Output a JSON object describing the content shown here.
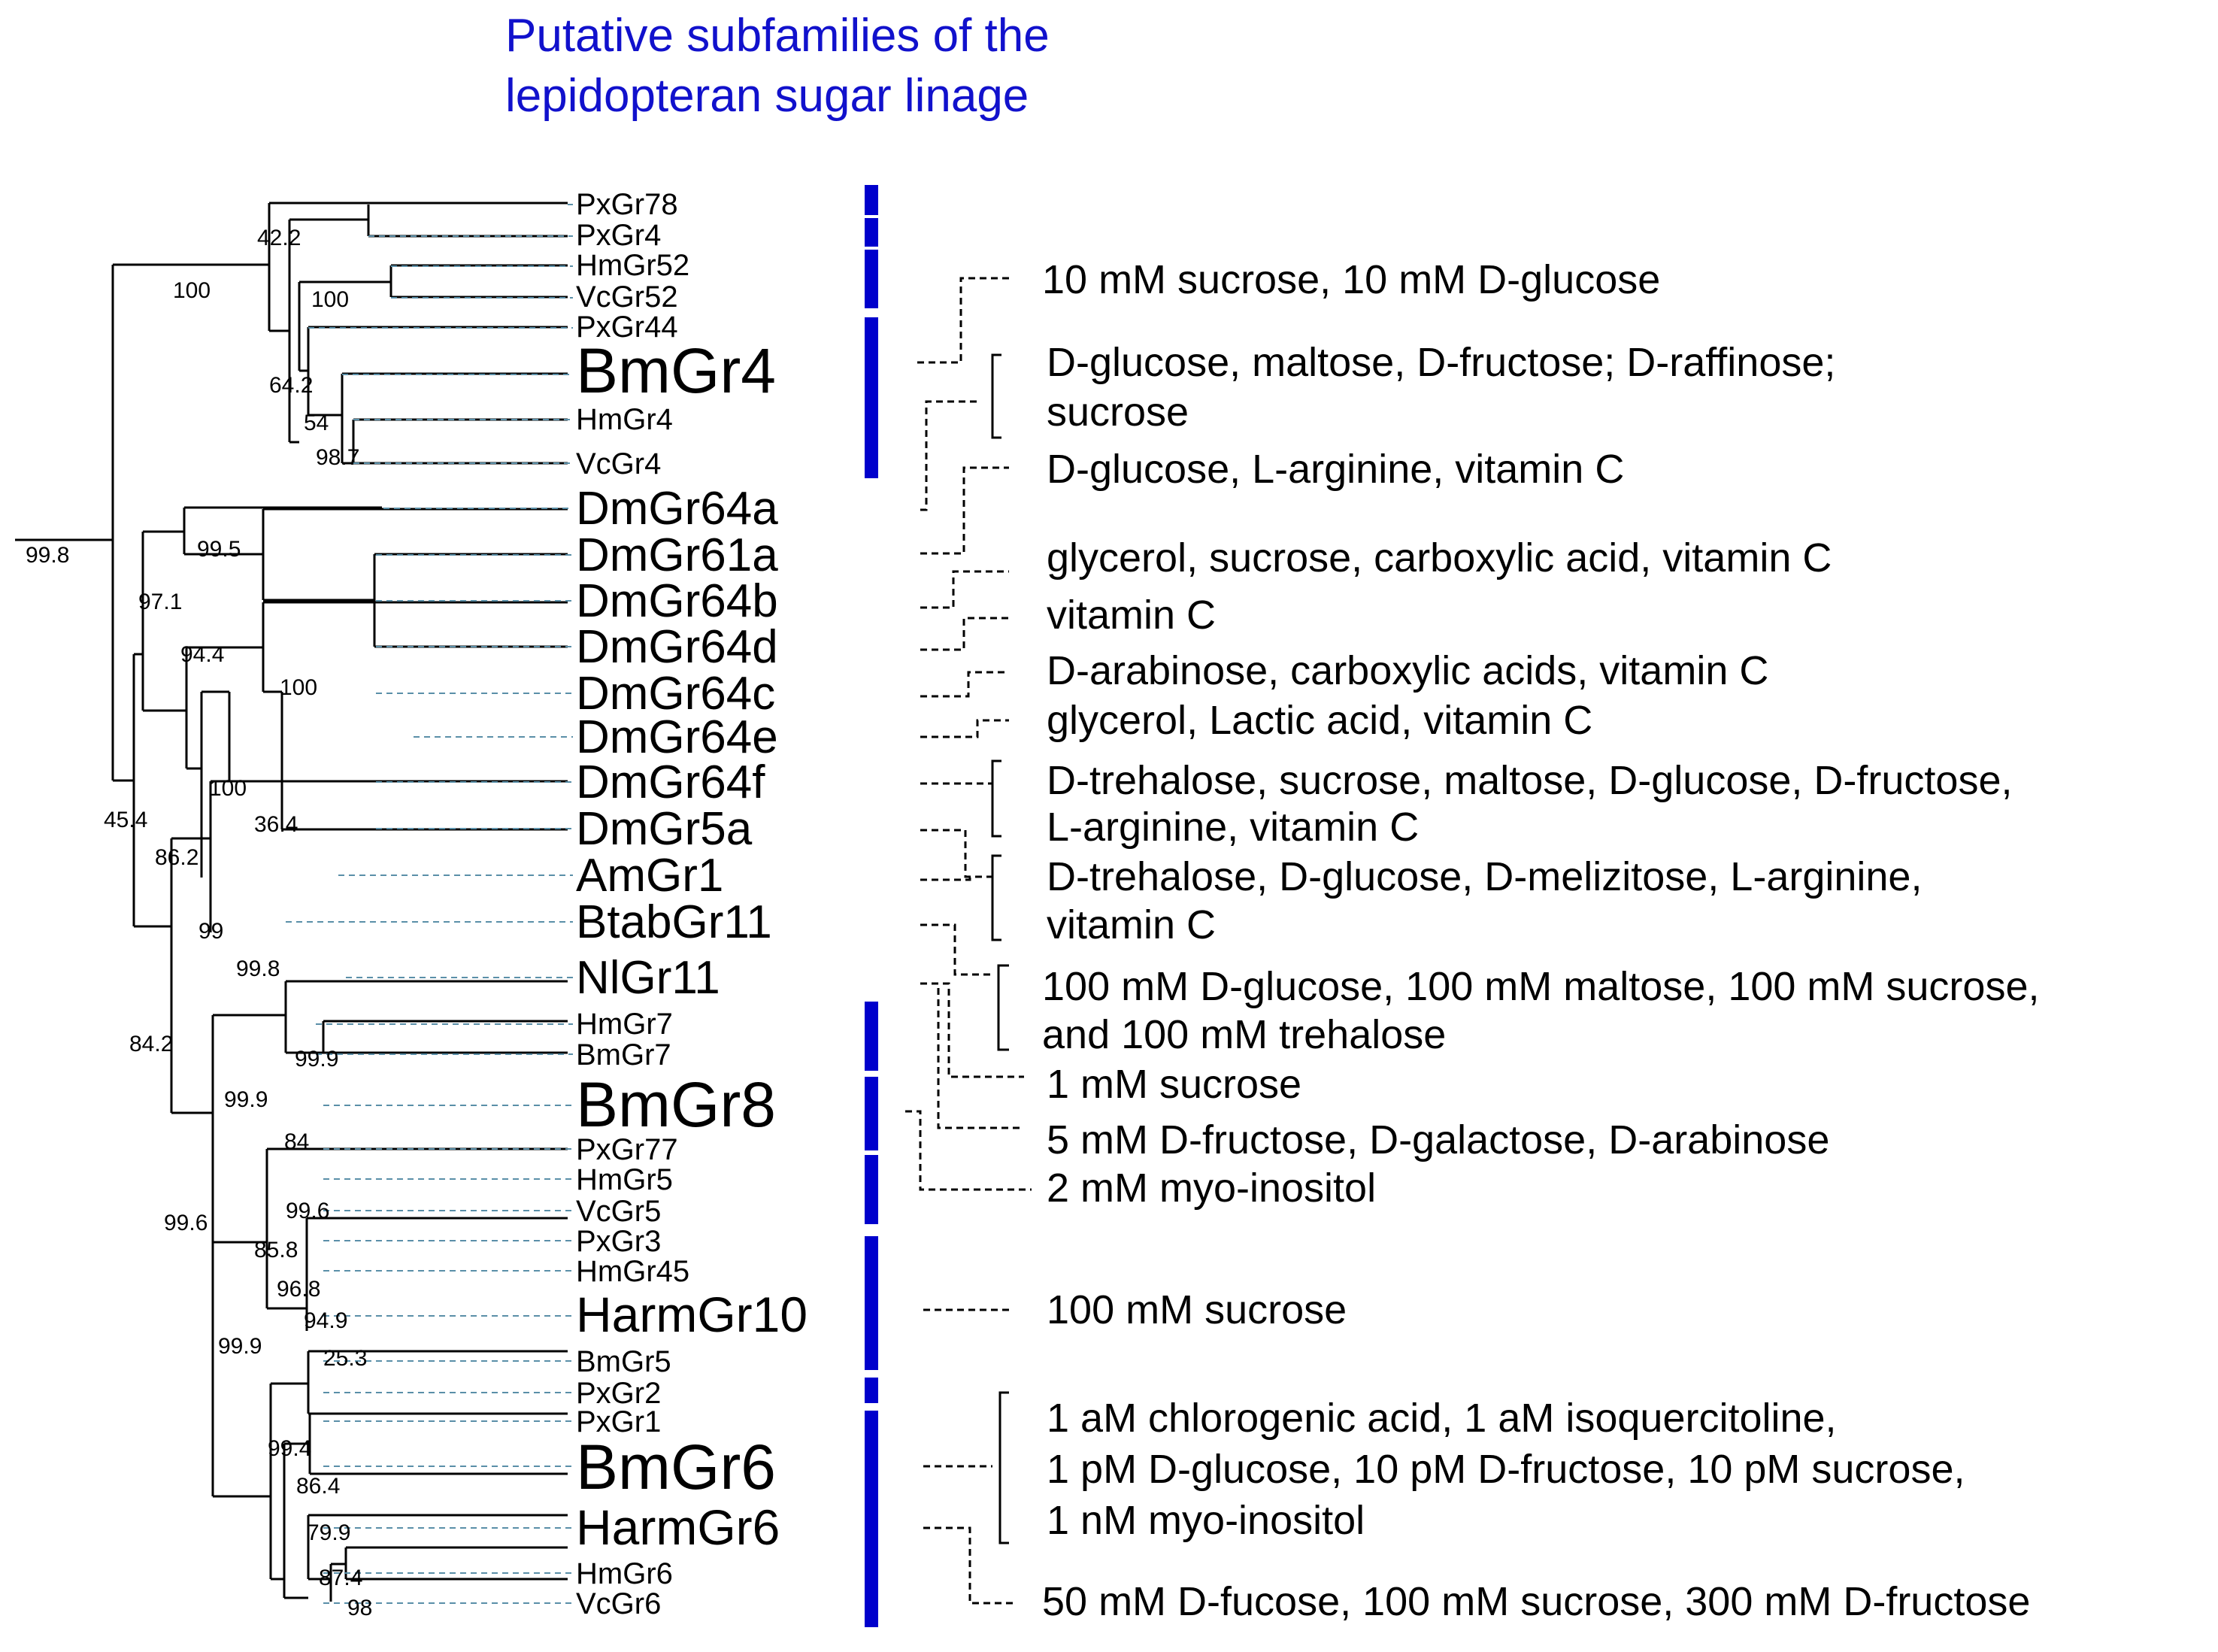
{
  "title": {
    "line1": "Putative subfamilies of the",
    "line2": "lepidopteran sugar linage"
  },
  "colors": {
    "title": "#1111cc",
    "Px": "#228b22",
    "Hm": "#7a5fb3",
    "Vc": "#cc7a00",
    "Bm": "#ff0000",
    "other": "#000000",
    "subfamily_bar": "#0000cc"
  },
  "tree": {
    "leaves": [
      {
        "label": "PxGr78",
        "group": "Px"
      },
      {
        "label": "PxGr4",
        "group": "Px"
      },
      {
        "label": "HmGr52",
        "group": "Hm"
      },
      {
        "label": "VcGr52",
        "group": "Vc"
      },
      {
        "label": "PxGr44",
        "group": "Px"
      },
      {
        "label": "BmGr4",
        "group": "Bm",
        "emphasis": true
      },
      {
        "label": "HmGr4",
        "group": "Hm"
      },
      {
        "label": "VcGr4",
        "group": "Vc"
      },
      {
        "label": "DmGr64a",
        "group": "other",
        "emphasis": true
      },
      {
        "label": "DmGr61a",
        "group": "other",
        "emphasis": true
      },
      {
        "label": "DmGr64b",
        "group": "other",
        "emphasis": true
      },
      {
        "label": "DmGr64d",
        "group": "other",
        "emphasis": true
      },
      {
        "label": "DmGr64c",
        "group": "other",
        "emphasis": true
      },
      {
        "label": "DmGr64e",
        "group": "other",
        "emphasis": true
      },
      {
        "label": "DmGr64f",
        "group": "other",
        "emphasis": true
      },
      {
        "label": "DmGr5a",
        "group": "other",
        "emphasis": true
      },
      {
        "label": "AmGr1",
        "group": "other",
        "emphasis": true
      },
      {
        "label": "BtabGr11",
        "group": "other",
        "emphasis": true
      },
      {
        "label": "NlGr11",
        "group": "other",
        "emphasis": true
      },
      {
        "label": "HmGr7",
        "group": "Hm"
      },
      {
        "label": "BmGr7",
        "group": "Bm"
      },
      {
        "label": "BmGr8",
        "group": "Bm",
        "emphasis": true
      },
      {
        "label": "PxGr77",
        "group": "Px"
      },
      {
        "label": "HmGr5",
        "group": "Hm"
      },
      {
        "label": "VcGr5",
        "group": "Vc"
      },
      {
        "label": "PxGr3",
        "group": "Px"
      },
      {
        "label": "HmGr45",
        "group": "Hm"
      },
      {
        "label": "HarmGr10",
        "group": "other",
        "emphasis": true
      },
      {
        "label": "BmGr5",
        "group": "Bm"
      },
      {
        "label": "PxGr2",
        "group": "Px"
      },
      {
        "label": "PxGr1",
        "group": "Px"
      },
      {
        "label": "BmGr6",
        "group": "Bm",
        "emphasis": true
      },
      {
        "label": "HarmGr6",
        "group": "other",
        "emphasis": true
      },
      {
        "label": "HmGr6",
        "group": "Hm"
      },
      {
        "label": "VcGr6",
        "group": "Vc"
      }
    ],
    "bootstrap": [
      "42.2",
      "100",
      "100",
      "64.2",
      "54",
      "98.7",
      "99.8",
      "99.5",
      "97.1",
      "94.4",
      "100",
      "100",
      "36.4",
      "45.4",
      "86.2",
      "99",
      "99.8",
      "84.2",
      "99.9",
      "99.9",
      "84",
      "99.6",
      "99.6",
      "85.8",
      "96.8",
      "94.9",
      "25.3",
      "99.9",
      "99.4",
      "86.4",
      "79.9",
      "87.4",
      "98"
    ]
  },
  "ligands": [
    {
      "lines": [
        "10 mM sucrose, 10 mM D-glucose"
      ]
    },
    {
      "lines": [
        "D-glucose, maltose, D-fructose; D-raffinose;",
        "sucrose"
      ]
    },
    {
      "lines": [
        "D-glucose, L-arginine, vitamin C"
      ]
    },
    {
      "lines": [
        "glycerol, sucrose, carboxylic acid, vitamin C"
      ]
    },
    {
      "lines": [
        "vitamin C"
      ]
    },
    {
      "lines": [
        "D-arabinose, carboxylic acids, vitamin C"
      ]
    },
    {
      "lines": [
        "glycerol, Lactic acid, vitamin C"
      ]
    },
    {
      "lines": [
        "D-trehalose, sucrose, maltose, D-glucose, D-fructose,",
        "L-arginine, vitamin C"
      ]
    },
    {
      "lines": [
        "D-trehalose, D-glucose, D-melizitose, L-arginine,",
        "vitamin C"
      ]
    },
    {
      "lines": [
        "100 mM D-glucose, 100 mM maltose, 100 mM sucrose,",
        "and 100 mM trehalose"
      ]
    },
    {
      "lines": [
        "1 mM sucrose"
      ]
    },
    {
      "lines": [
        "5 mM D-fructose, D-galactose, D-arabinose"
      ]
    },
    {
      "lines": [
        "2 mM myo-inositol"
      ]
    },
    {
      "lines": [
        "100 mM sucrose"
      ]
    },
    {
      "lines": [
        "1 aM chlorogenic acid, 1 aM isoquercitoline,",
        "1 pM D-glucose, 10 pM D-fructose, 10 pM sucrose,",
        "1 nM myo-inositol"
      ]
    },
    {
      "lines": [
        "50 mM D-fucose, 100 mM sucrose, 300 mM D-fructose"
      ]
    }
  ]
}
